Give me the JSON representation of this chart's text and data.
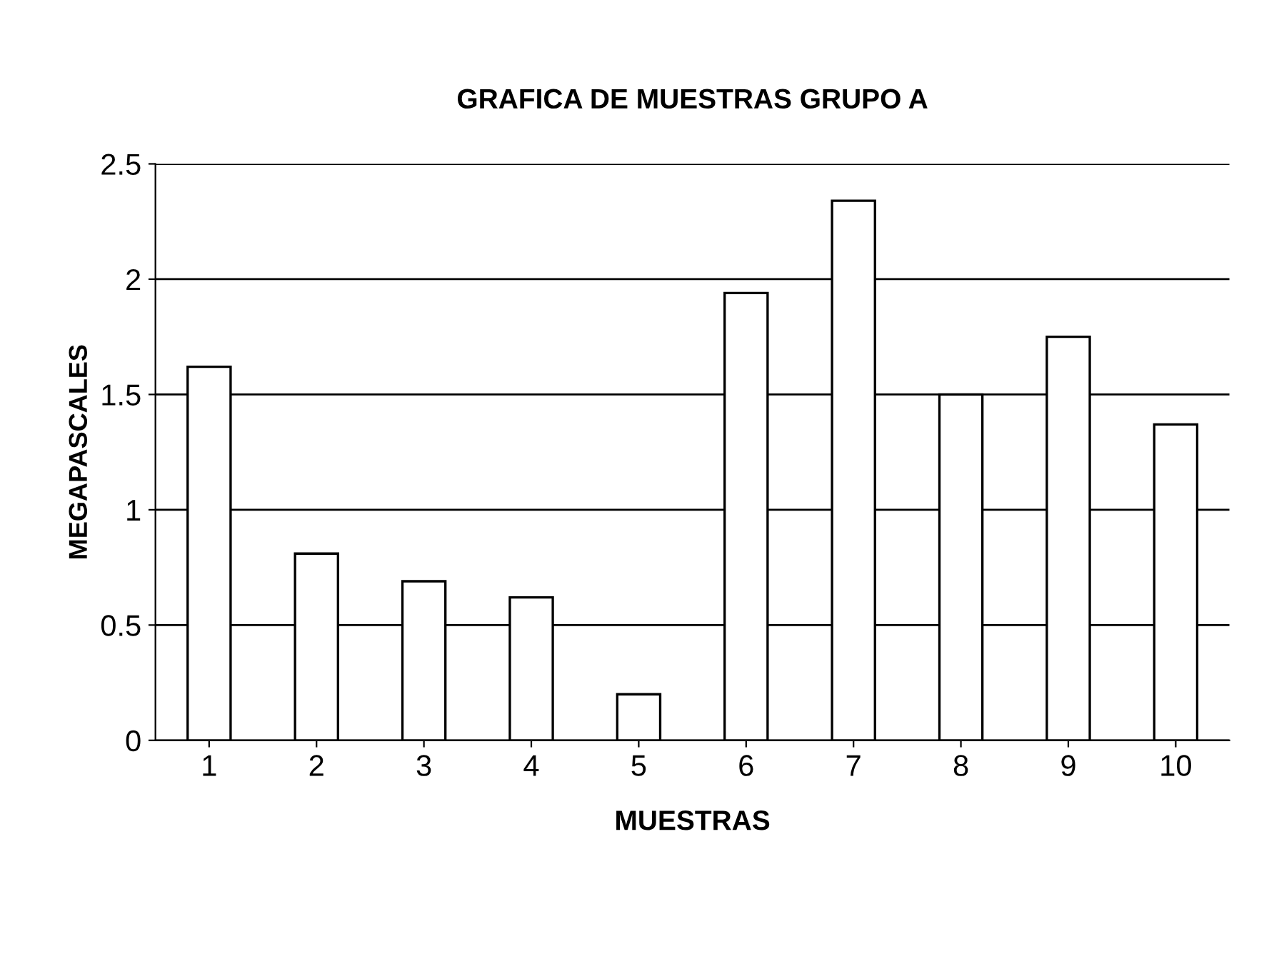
{
  "chart_data": {
    "type": "bar",
    "title": "GRAFICA DE MUESTRAS GRUPO A",
    "xlabel": "MUESTRAS",
    "ylabel": "MEGAPASCALES",
    "categories": [
      "1",
      "2",
      "3",
      "4",
      "5",
      "6",
      "7",
      "8",
      "9",
      "10"
    ],
    "values": [
      1.62,
      0.81,
      0.69,
      0.62,
      0.2,
      1.94,
      2.34,
      1.5,
      1.75,
      1.37
    ],
    "color": "#ffffff",
    "ylim": [
      0,
      2.5
    ],
    "yticks": [
      0,
      0.5,
      1,
      1.5,
      2,
      2.5
    ],
    "grid": "y",
    "legend": false
  }
}
